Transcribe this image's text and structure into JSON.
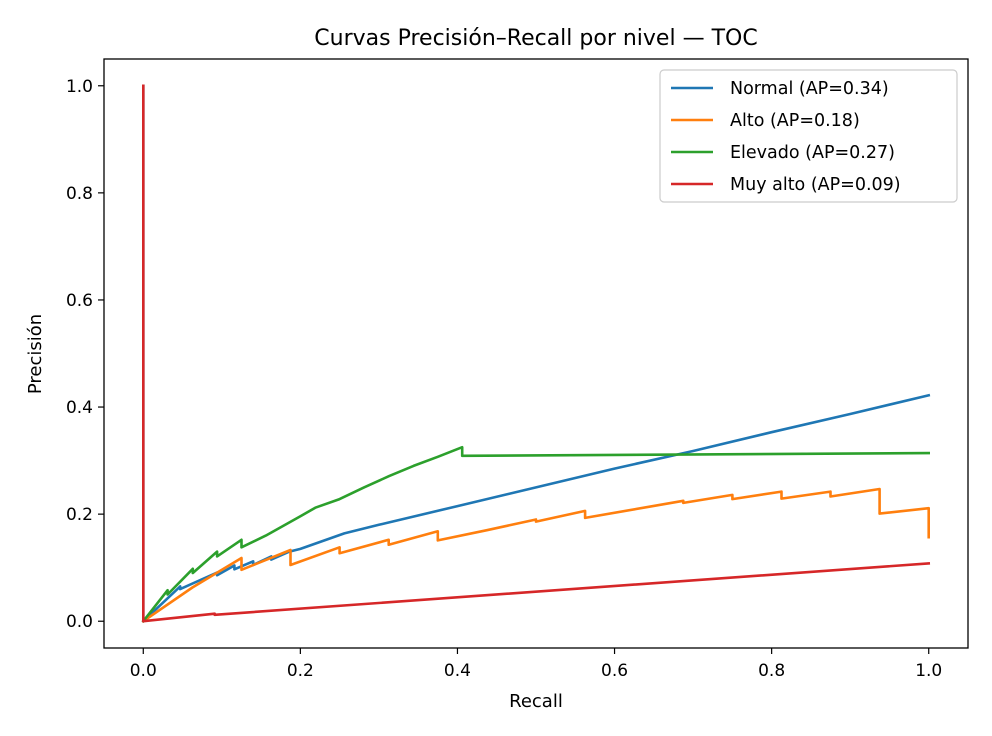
{
  "chart_data": {
    "type": "line",
    "title": "Curvas Precisión–Recall por nivel — TOC",
    "xlabel": "Recall",
    "ylabel": "Precisión",
    "xlim": [
      -0.05,
      1.05
    ],
    "ylim": [
      -0.05,
      1.05
    ],
    "xticks": [
      0.0,
      0.2,
      0.4,
      0.6,
      0.8,
      1.0
    ],
    "xtick_labels": [
      "0.0",
      "0.2",
      "0.4",
      "0.6",
      "0.8",
      "1.0"
    ],
    "yticks": [
      0.0,
      0.2,
      0.4,
      0.6,
      0.8,
      1.0
    ],
    "ytick_labels": [
      "0.0",
      "0.2",
      "0.4",
      "0.6",
      "0.8",
      "1.0"
    ],
    "grid": false,
    "legend_position": "top-right",
    "series": [
      {
        "name": "Normal (AP=0.34)",
        "color": "#1f77b4",
        "points": [
          [
            0.0,
            1.0
          ],
          [
            0.0,
            0.0
          ],
          [
            0.047,
            0.065
          ],
          [
            0.047,
            0.06
          ],
          [
            0.094,
            0.091
          ],
          [
            0.094,
            0.086
          ],
          [
            0.116,
            0.104
          ],
          [
            0.116,
            0.097
          ],
          [
            0.14,
            0.112
          ],
          [
            0.14,
            0.105
          ],
          [
            0.163,
            0.121
          ],
          [
            0.163,
            0.115
          ],
          [
            0.186,
            0.13
          ],
          [
            0.2,
            0.135
          ],
          [
            0.256,
            0.164
          ],
          [
            0.3,
            0.18
          ],
          [
            0.4,
            0.215
          ],
          [
            0.5,
            0.25
          ],
          [
            0.6,
            0.285
          ],
          [
            0.7,
            0.318
          ],
          [
            0.8,
            0.353
          ],
          [
            0.9,
            0.387
          ],
          [
            1.0,
            0.422
          ]
        ]
      },
      {
        "name": "Alto (AP=0.18)",
        "color": "#ff7f0e",
        "points": [
          [
            0.0,
            0.0
          ],
          [
            0.0625,
            0.063
          ],
          [
            0.125,
            0.118
          ],
          [
            0.125,
            0.096
          ],
          [
            0.1875,
            0.133
          ],
          [
            0.1875,
            0.105
          ],
          [
            0.25,
            0.138
          ],
          [
            0.25,
            0.127
          ],
          [
            0.3125,
            0.152
          ],
          [
            0.3125,
            0.143
          ],
          [
            0.375,
            0.168
          ],
          [
            0.375,
            0.151
          ],
          [
            0.4375,
            0.17
          ],
          [
            0.5,
            0.19
          ],
          [
            0.5,
            0.186
          ],
          [
            0.5625,
            0.206
          ],
          [
            0.5625,
            0.193
          ],
          [
            0.6875,
            0.225
          ],
          [
            0.6875,
            0.221
          ],
          [
            0.75,
            0.236
          ],
          [
            0.75,
            0.228
          ],
          [
            0.8125,
            0.242
          ],
          [
            0.8125,
            0.229
          ],
          [
            0.875,
            0.242
          ],
          [
            0.875,
            0.233
          ],
          [
            0.9375,
            0.247
          ],
          [
            0.9375,
            0.201
          ],
          [
            1.0,
            0.211
          ],
          [
            1.0,
            0.157
          ]
        ]
      },
      {
        "name": "Elevado (AP=0.27)",
        "color": "#2ca02c",
        "points": [
          [
            0.0,
            0.0
          ],
          [
            0.031,
            0.058
          ],
          [
            0.031,
            0.05
          ],
          [
            0.063,
            0.098
          ],
          [
            0.063,
            0.09
          ],
          [
            0.094,
            0.13
          ],
          [
            0.094,
            0.121
          ],
          [
            0.125,
            0.152
          ],
          [
            0.125,
            0.138
          ],
          [
            0.156,
            0.16
          ],
          [
            0.2,
            0.196
          ],
          [
            0.219,
            0.212
          ],
          [
            0.25,
            0.228
          ],
          [
            0.281,
            0.25
          ],
          [
            0.313,
            0.271
          ],
          [
            0.344,
            0.29
          ],
          [
            0.375,
            0.307
          ],
          [
            0.406,
            0.325
          ],
          [
            0.406,
            0.309
          ],
          [
            1.0,
            0.314
          ]
        ]
      },
      {
        "name": "Muy alto (AP=0.09)",
        "color": "#d62728",
        "points": [
          [
            0.0,
            1.0
          ],
          [
            0.0,
            0.0
          ],
          [
            0.091,
            0.014
          ],
          [
            0.091,
            0.012
          ],
          [
            1.0,
            0.108
          ]
        ]
      }
    ]
  }
}
